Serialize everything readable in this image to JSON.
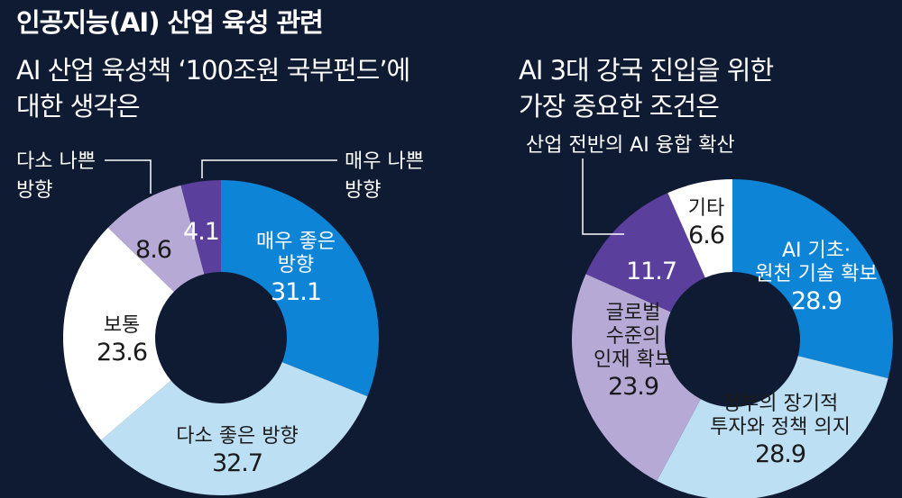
{
  "main_title": "인공지능(AI) 산업 육성 관련",
  "chart_data": [
    {
      "type": "pie",
      "title_lines": [
        "AI 산업 육성책 ‘100조원 국부펀드’에",
        "대한 생각은"
      ],
      "categories": [
        "매우 좋은 방향",
        "다소 좋은 방향",
        "보통",
        "다소 나쁜 방향",
        "매우 나쁜 방향"
      ],
      "values": [
        31.1,
        32.7,
        23.6,
        8.6,
        4.1
      ],
      "colors": [
        "#0d84d6",
        "#bcdff3",
        "#ffffff",
        "#b7a9d6",
        "#5a3f9c"
      ],
      "label_lines": [
        [
          "매우 좋은",
          "방향"
        ],
        [
          "다소 좋은 방향"
        ],
        [
          "보통"
        ],
        [],
        []
      ],
      "value_labels": [
        "31.1",
        "32.7",
        "23.6",
        "8.6",
        "4.1"
      ],
      "callouts": [
        [],
        [],
        [],
        [
          "다소 나쁜",
          "방향"
        ],
        [
          "매우 나쁜",
          "방향"
        ]
      ]
    },
    {
      "type": "pie",
      "title_lines": [
        "AI 3대 강국 진입을 위한",
        "가장 중요한 조건은"
      ],
      "categories": [
        "AI 기초·원천 기술 확보",
        "정부의 장기적 투자와 정책 의지",
        "글로벌 수준의 인재 확보",
        "산업 전반의 AI 융합 확산",
        "기타"
      ],
      "values": [
        28.9,
        28.9,
        23.9,
        11.7,
        6.6
      ],
      "colors": [
        "#0d84d6",
        "#bcdff3",
        "#b7a9d6",
        "#5a3f9c",
        "#ffffff"
      ],
      "label_lines": [
        [
          "AI 기초·",
          "원천 기술 확보"
        ],
        [
          "정부의 장기적",
          "투자와 정책 의지"
        ],
        [
          "글로벌",
          "수준의",
          "인재 확보"
        ],
        [],
        [
          "기타"
        ]
      ],
      "value_labels": [
        "28.9",
        "28.9",
        "23.9",
        "11.7",
        "6.6"
      ],
      "callouts": [
        [],
        [],
        [],
        [
          "산업 전반의 AI 융합 확산"
        ],
        []
      ]
    }
  ]
}
